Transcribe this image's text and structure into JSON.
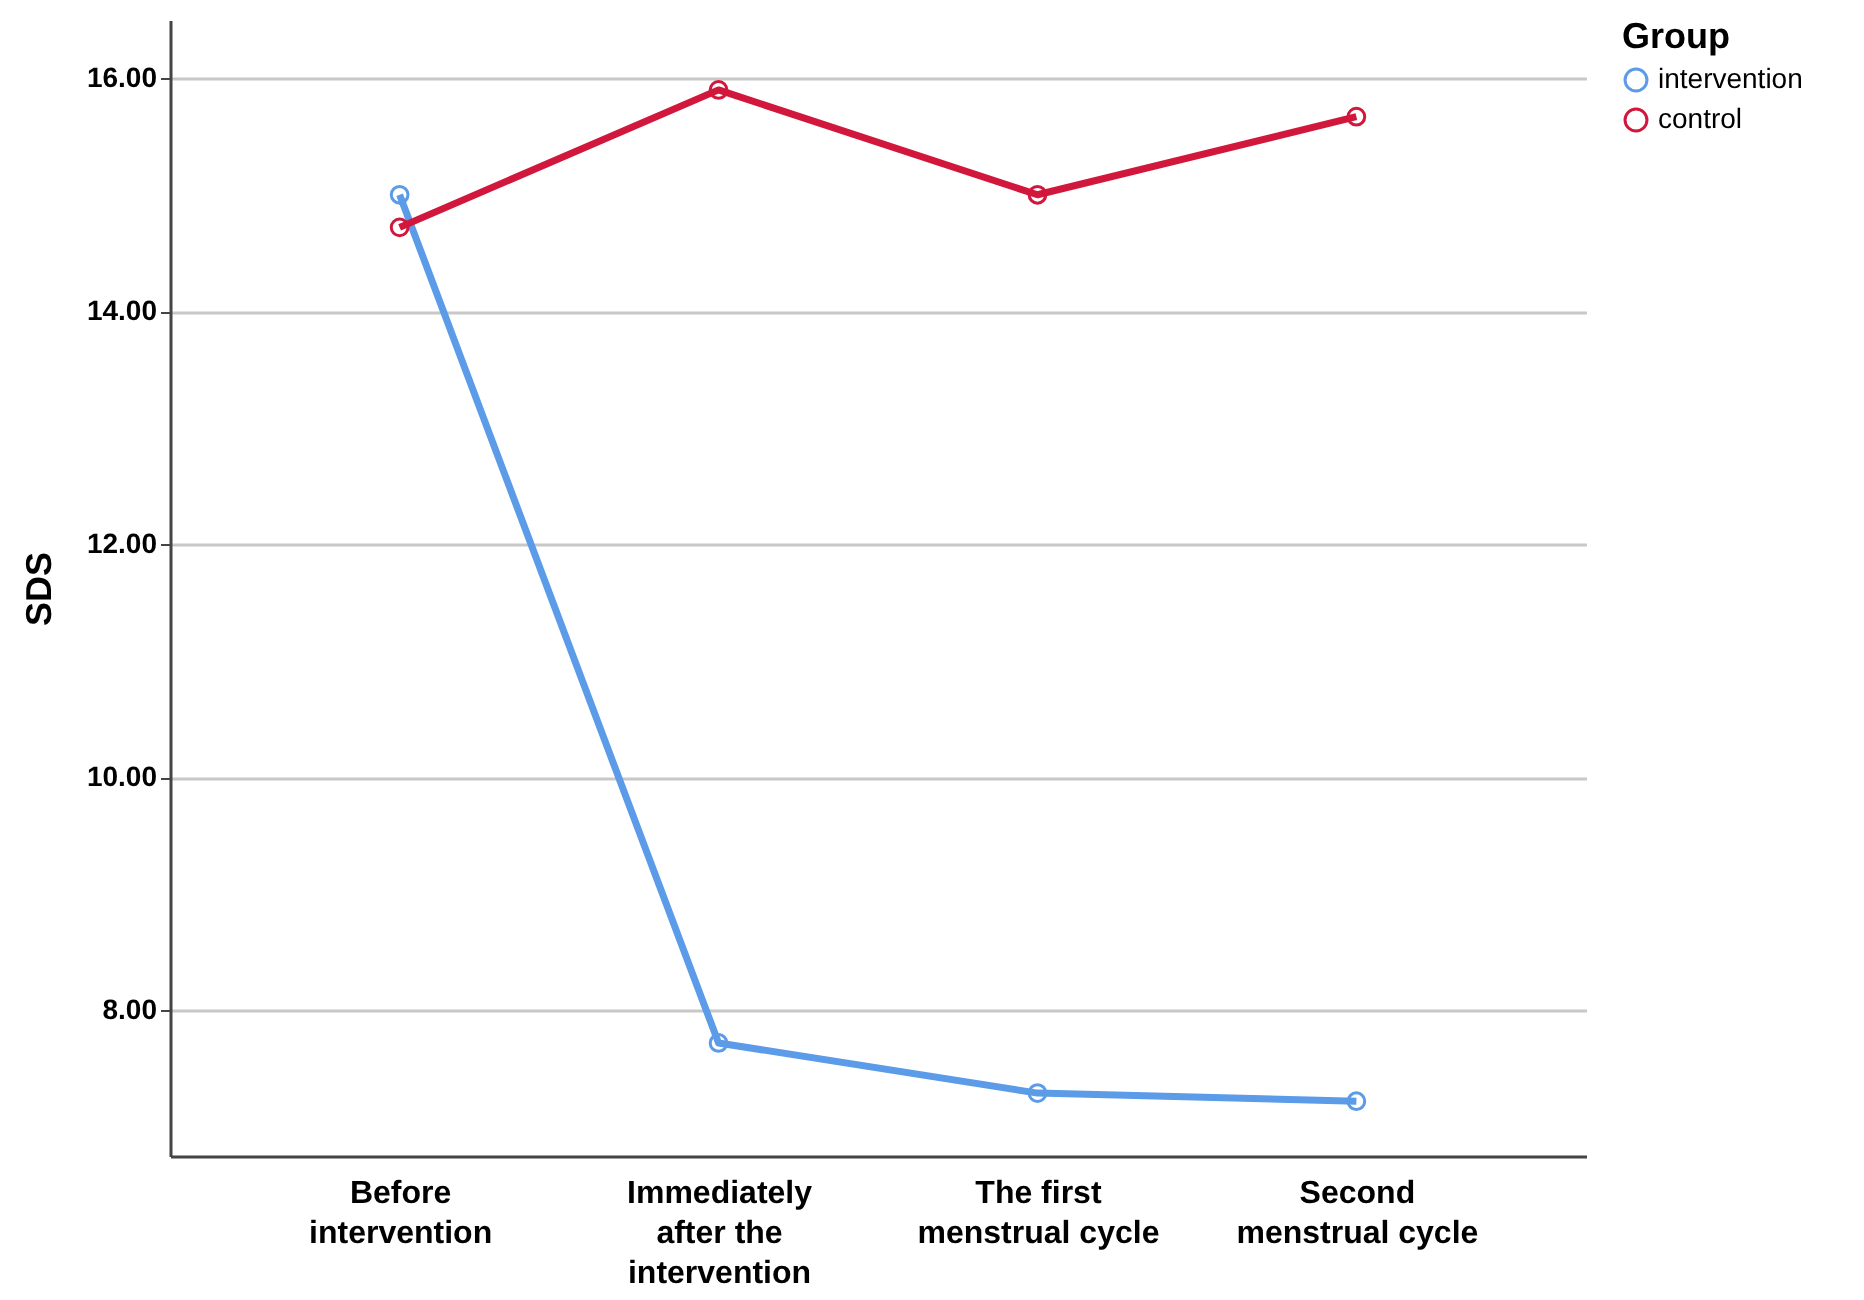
{
  "chart_data": {
    "type": "line",
    "ylabel": "SDS",
    "legend_title": "Group",
    "categories": [
      "Before intervention",
      "Immediately after the intervention",
      "The first menstrual cycle",
      "Second menstrual cycle"
    ],
    "series": [
      {
        "name": "intervention",
        "color": "#5b9be8",
        "values": [
          15.0,
          7.72,
          7.29,
          7.22
        ]
      },
      {
        "name": "control",
        "color": "#d1173b",
        "values": [
          14.72,
          15.9,
          15.0,
          15.67
        ]
      }
    ],
    "ylim": [
      6.75,
      16.5
    ],
    "yticks": [
      {
        "value": 8,
        "label": "8.00"
      },
      {
        "value": 10,
        "label": "10.00"
      },
      {
        "value": 12,
        "label": "12.00"
      },
      {
        "value": 14,
        "label": "14.00"
      },
      {
        "value": 16,
        "label": "16.00"
      }
    ],
    "grid": "y",
    "legend": "top right",
    "marker": "circle",
    "line_style": "solid"
  }
}
